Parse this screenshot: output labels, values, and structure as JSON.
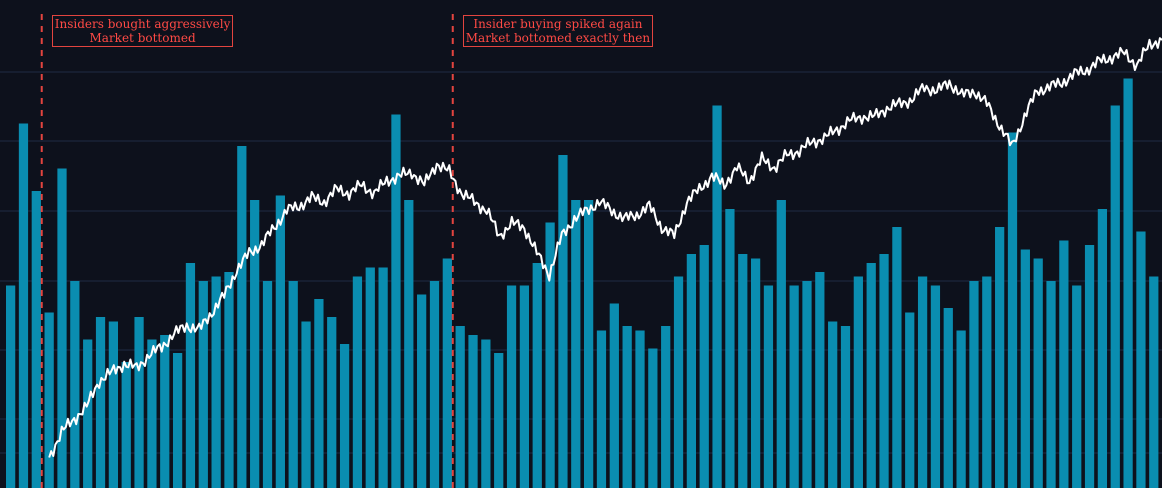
{
  "chart_data": {
    "type": "bar+line",
    "title": "",
    "xlabel": "",
    "ylabel": "",
    "grid": true,
    "colors": {
      "background": "#0d111c",
      "bars": "#0a8db0",
      "line": "#ffffff",
      "annotation": "#e2443f",
      "grid": "#1e2a44"
    },
    "bars_ylim": [
      0,
      100
    ],
    "bars": [
      45,
      81,
      66,
      39,
      71,
      46,
      33,
      38,
      37,
      28,
      38,
      33,
      34,
      30,
      50,
      46,
      47,
      48,
      76,
      64,
      46,
      65,
      46,
      37,
      42,
      38,
      32,
      47,
      49,
      49,
      83,
      64,
      43,
      46,
      51,
      36,
      34,
      33,
      30,
      45,
      45,
      50,
      59,
      74,
      64,
      64,
      35,
      41,
      36,
      35,
      31,
      36,
      47,
      52,
      54,
      85,
      62,
      52,
      51,
      45,
      64,
      45,
      46,
      48,
      37,
      36,
      47,
      50,
      52,
      58,
      39,
      47,
      45,
      40,
      35,
      46,
      47,
      58,
      79,
      53,
      51,
      46,
      55,
      45,
      54,
      62,
      85,
      91,
      57,
      47
    ],
    "line_ylim": [
      0,
      100
    ],
    "line": [
      2,
      8,
      11,
      14,
      20,
      22,
      24,
      23,
      26,
      28,
      31,
      33,
      32,
      36,
      40,
      46,
      50,
      52,
      56,
      60,
      61,
      63,
      62,
      65,
      64,
      66,
      64,
      67,
      68,
      69,
      66,
      71,
      69,
      64,
      62,
      60,
      54,
      57,
      56,
      50,
      45,
      54,
      58,
      60,
      62,
      60,
      58,
      59,
      61,
      56,
      54,
      62,
      65,
      68,
      66,
      70,
      67,
      72,
      70,
      73,
      74,
      76,
      77,
      79,
      81,
      82,
      82,
      84,
      85,
      86,
      89,
      88,
      90,
      87,
      88,
      85,
      80,
      75,
      82,
      88,
      89,
      90,
      92,
      93,
      95,
      96,
      97,
      94,
      99,
      100
    ],
    "annotations": [
      {
        "bar_index": 3,
        "lines": [
          "Insiders bought aggressively",
          "Market bottomed"
        ]
      },
      {
        "bar_index": 35,
        "lines": [
          "Insider buying spiked again",
          "Market bottomed exactly then"
        ]
      }
    ]
  }
}
